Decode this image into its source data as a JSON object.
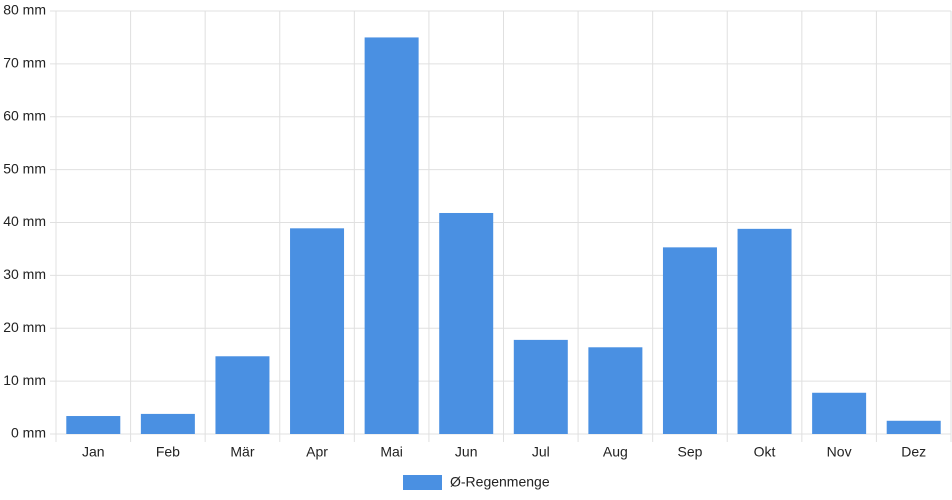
{
  "chart_data": {
    "type": "bar",
    "categories": [
      "Jan",
      "Feb",
      "Mär",
      "Apr",
      "Mai",
      "Jun",
      "Jul",
      "Aug",
      "Sep",
      "Okt",
      "Nov",
      "Dez"
    ],
    "series": [
      {
        "name": "Ø-Regenmenge",
        "color": "#4a90e2",
        "values": [
          3.4,
          3.8,
          14.7,
          38.9,
          75.0,
          41.8,
          17.8,
          16.4,
          35.3,
          38.8,
          7.8,
          2.5
        ]
      }
    ],
    "ylim": [
      0,
      80
    ],
    "yticks": [
      {
        "value": 0,
        "label": "0 mm"
      },
      {
        "value": 10,
        "label": "10 mm"
      },
      {
        "value": 20,
        "label": "20 mm"
      },
      {
        "value": 30,
        "label": "30 mm"
      },
      {
        "value": 40,
        "label": "40 mm"
      },
      {
        "value": 50,
        "label": "50 mm"
      },
      {
        "value": 60,
        "label": "60 mm"
      },
      {
        "value": 70,
        "label": "70 mm"
      },
      {
        "value": 80,
        "label": "80 mm"
      }
    ],
    "grid": true,
    "legend": "bottom"
  }
}
